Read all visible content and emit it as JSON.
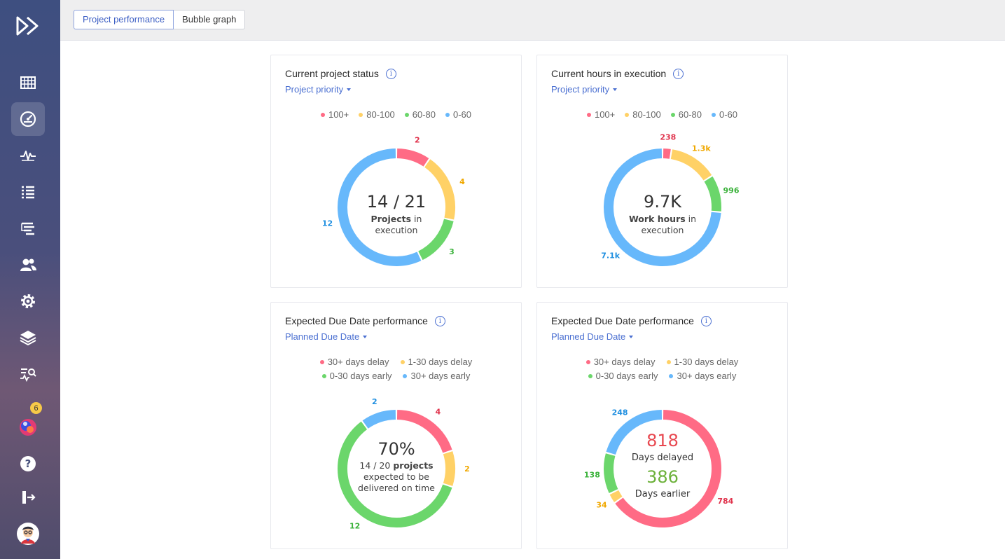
{
  "tabs": {
    "performance": "Project performance",
    "bubble": "Bubble graph"
  },
  "sidebar": {
    "notification_count": "6"
  },
  "colors": {
    "red": "#ff6b85",
    "yellow": "#ffd166",
    "green": "#6bd66b",
    "blue": "#67b8fb"
  },
  "cards": [
    {
      "title": "Current project status",
      "dropdown": "Project priority",
      "legend": [
        "100+",
        "80-100",
        "60-80",
        "0-60"
      ],
      "center_value": "14 / 21",
      "center_line1_bold": "Projects",
      "center_line1_rest": " in",
      "center_line2": "execution",
      "labels": [
        "2",
        "4",
        "3",
        "12"
      ]
    },
    {
      "title": "Current hours in execution",
      "dropdown": "Project priority",
      "legend": [
        "100+",
        "80-100",
        "60-80",
        "0-60"
      ],
      "center_value": "9.7K",
      "center_line1_bold": "Work hours",
      "center_line1_rest": " in",
      "center_line2": "execution",
      "labels": [
        "238",
        "1.3k",
        "996",
        "7.1k"
      ]
    },
    {
      "title": "Expected Due Date performance",
      "dropdown": "Planned Due Date",
      "legend": [
        "30+ days delay",
        "1-30 days delay",
        "0-30 days early",
        "30+ days early"
      ],
      "center_value": "70%",
      "center_line1_plain": "14 / 20 ",
      "center_line1_bold": "projects",
      "center_line2": "expected to be",
      "center_line3": "delivered on time",
      "labels": [
        "4",
        "2",
        "12",
        "2"
      ]
    },
    {
      "title": "Expected Due Date performance",
      "dropdown": "Planned Due Date",
      "legend": [
        "30+ days delay",
        "1-30 days delay",
        "0-30 days early",
        "30+ days early"
      ],
      "delayed_value": "818",
      "delayed_label": "Days delayed",
      "earlier_value": "386",
      "earlier_label": "Days earlier",
      "labels": [
        "784",
        "34",
        "138",
        "248"
      ]
    }
  ],
  "chart_data": [
    {
      "type": "pie",
      "categories": [
        "100+",
        "80-100",
        "60-80",
        "0-60"
      ],
      "values": [
        2,
        4,
        3,
        12
      ]
    },
    {
      "type": "pie",
      "categories": [
        "100+",
        "80-100",
        "60-80",
        "0-60"
      ],
      "values": [
        238,
        1300,
        996,
        7100
      ]
    },
    {
      "type": "pie",
      "categories": [
        "30+ days delay",
        "1-30 days delay",
        "0-30 days early",
        "30+ days early"
      ],
      "values": [
        4,
        2,
        12,
        2
      ]
    },
    {
      "type": "pie",
      "categories": [
        "30+ days delay",
        "1-30 days delay",
        "0-30 days early",
        "30+ days early"
      ],
      "values": [
        784,
        34,
        138,
        248
      ]
    }
  ]
}
